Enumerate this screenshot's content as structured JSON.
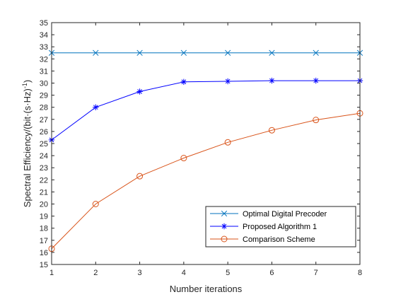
{
  "chart_data": {
    "type": "line",
    "title": "",
    "xlabel": "Number iterations",
    "ylabel": "Spectral Efficiency/(bit·(s·Hz)^-1)",
    "xlim": [
      1,
      8
    ],
    "ylim": [
      15,
      35
    ],
    "x_ticks": [
      1,
      2,
      3,
      4,
      5,
      6,
      7,
      8
    ],
    "y_ticks": [
      15,
      16,
      17,
      18,
      19,
      20,
      21,
      22,
      23,
      24,
      25,
      26,
      27,
      28,
      29,
      30,
      31,
      32,
      33,
      34,
      35
    ],
    "grid": false,
    "legend_position": "bottom-right",
    "x": [
      1,
      2,
      3,
      4,
      5,
      6,
      7,
      8
    ],
    "series": [
      {
        "name": "Optimal Digital Precoder",
        "values": [
          32.5,
          32.5,
          32.5,
          32.5,
          32.5,
          32.5,
          32.5,
          32.5
        ],
        "color": "#0072BD",
        "marker": "x"
      },
      {
        "name": "Proposed Algorithm 1",
        "values": [
          25.3,
          28.0,
          29.3,
          30.1,
          30.15,
          30.2,
          30.2,
          30.2
        ],
        "color": "#0000FF",
        "marker": "asterisk"
      },
      {
        "name": "Comparison Scheme",
        "values": [
          16.3,
          20.0,
          22.3,
          23.8,
          25.1,
          26.1,
          26.95,
          27.5
        ],
        "color": "#D95319",
        "marker": "circle"
      }
    ]
  }
}
